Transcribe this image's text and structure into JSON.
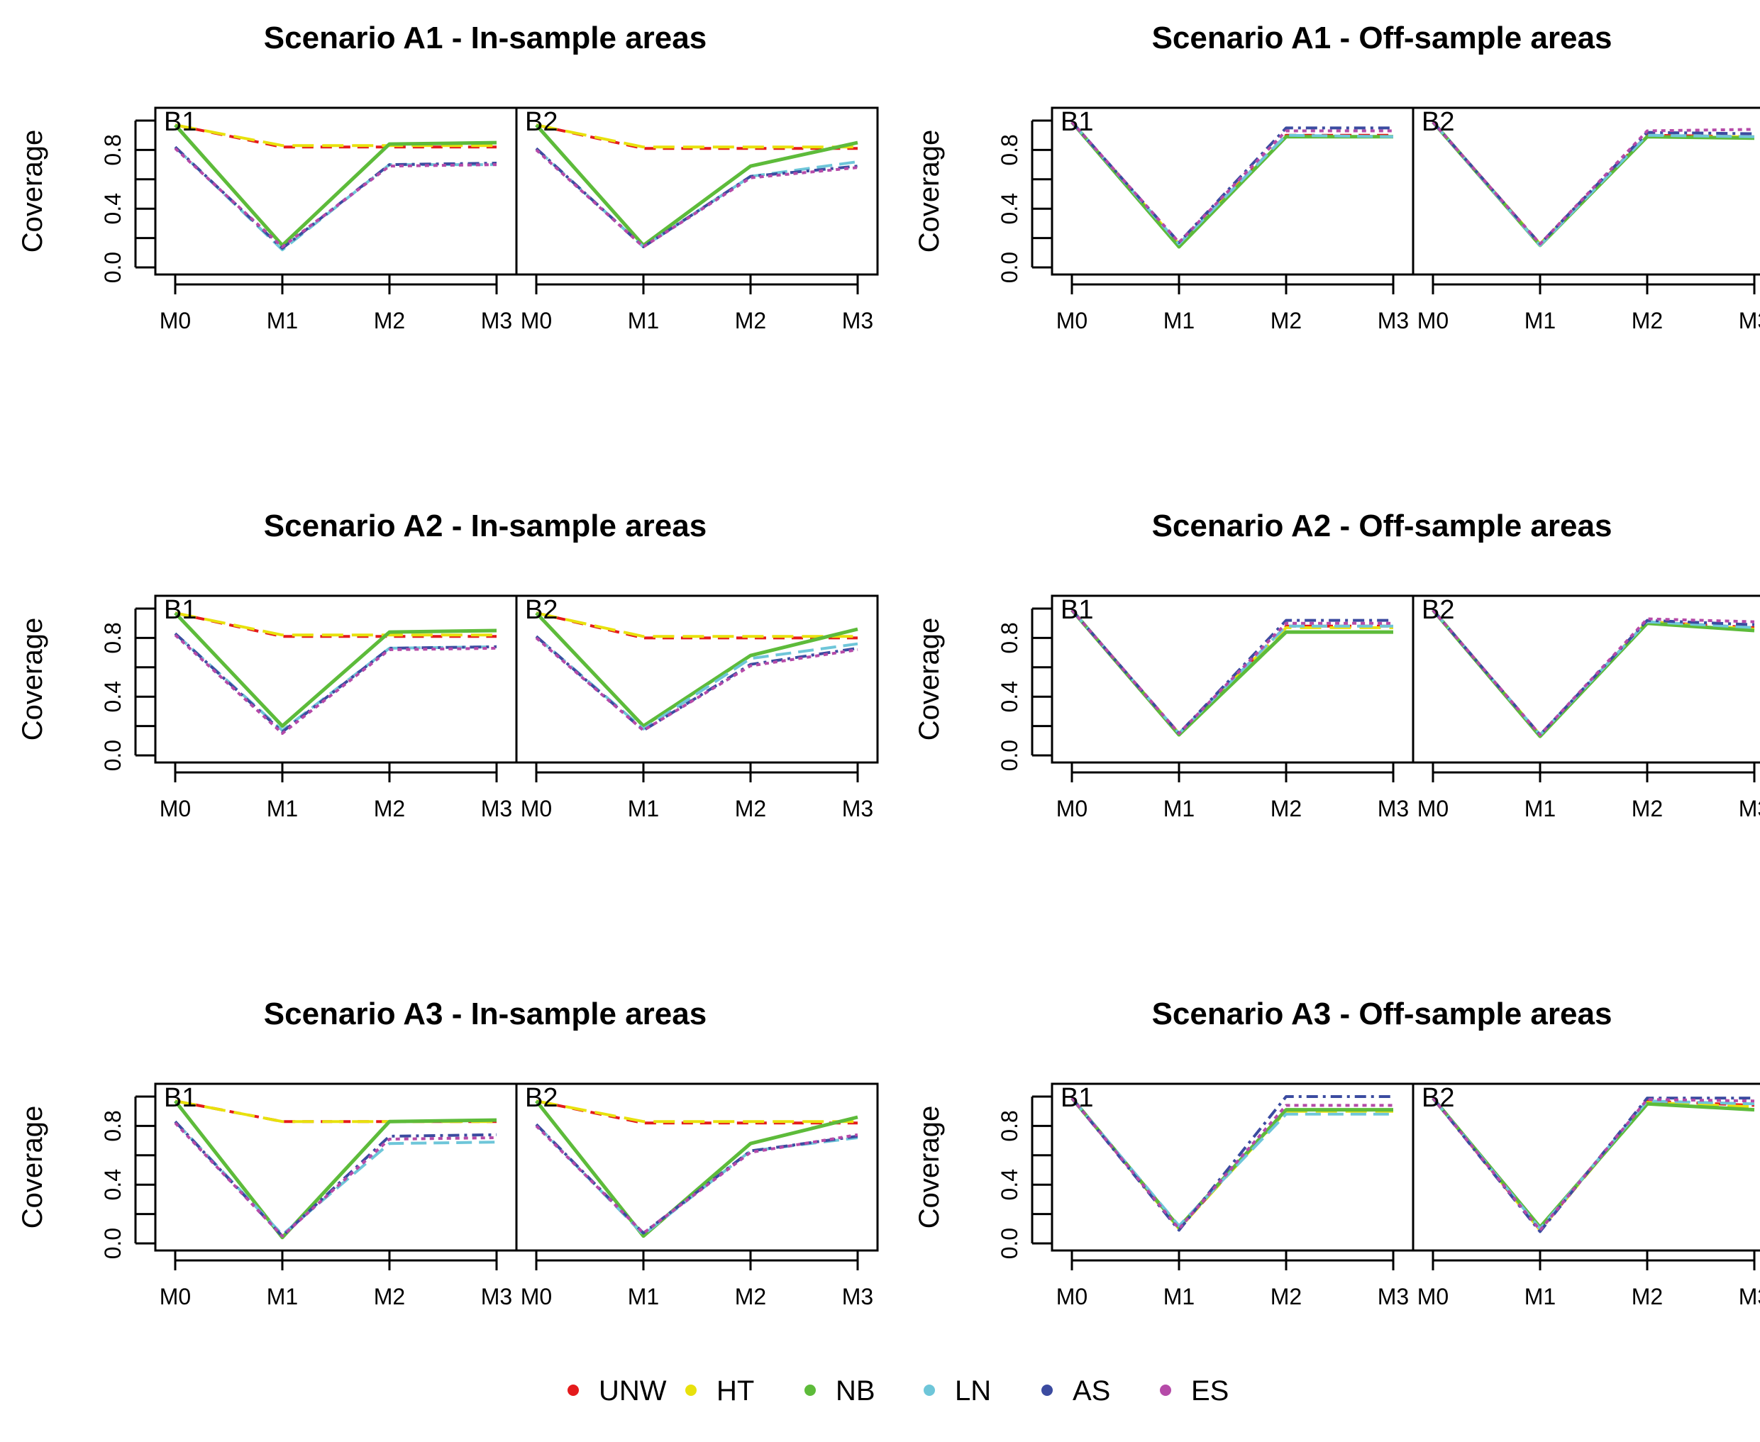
{
  "figure": {
    "legend": [
      {
        "key": "UNW",
        "label": "UNW",
        "color": "#E41A1C",
        "dash": "16 10"
      },
      {
        "key": "HT",
        "label": "HT",
        "color": "#E8E10C",
        "dash": "30 12"
      },
      {
        "key": "NB",
        "label": "NB",
        "color": "#5DBB3A",
        "dash": ""
      },
      {
        "key": "LN",
        "label": "LN",
        "color": "#6EC6D9",
        "dash": "22 10"
      },
      {
        "key": "AS",
        "label": "AS",
        "color": "#3B4BA0",
        "dash": "16 7 4 7"
      },
      {
        "key": "ES",
        "label": "ES",
        "color": "#B54AA8",
        "dash": "6 6"
      }
    ]
  },
  "chart_data": [
    {
      "type": "line",
      "title": "Scenario A1 - In-sample areas",
      "ylabel": "Coverage",
      "categories": [
        "M0",
        "M1",
        "M2",
        "M3"
      ],
      "yticks": [
        "0.0",
        "0.4",
        "0.8"
      ],
      "ylim": [
        0,
        1
      ],
      "facets": [
        {
          "label": "B1",
          "series": [
            {
              "name": "UNW",
              "values": [
                0.97,
                0.82,
                0.82,
                0.82
              ]
            },
            {
              "name": "HT",
              "values": [
                0.97,
                0.83,
                0.83,
                0.83
              ]
            },
            {
              "name": "NB",
              "values": [
                0.97,
                0.15,
                0.84,
                0.85
              ]
            },
            {
              "name": "LN",
              "values": [
                0.82,
                0.12,
                0.7,
                0.7
              ]
            },
            {
              "name": "AS",
              "values": [
                0.82,
                0.13,
                0.7,
                0.71
              ]
            },
            {
              "name": "ES",
              "values": [
                0.81,
                0.14,
                0.69,
                0.7
              ]
            }
          ]
        },
        {
          "label": "B2",
          "series": [
            {
              "name": "UNW",
              "values": [
                0.97,
                0.81,
                0.81,
                0.81
              ]
            },
            {
              "name": "HT",
              "values": [
                0.97,
                0.82,
                0.82,
                0.82
              ]
            },
            {
              "name": "NB",
              "values": [
                0.97,
                0.15,
                0.69,
                0.85
              ]
            },
            {
              "name": "LN",
              "values": [
                0.81,
                0.14,
                0.62,
                0.72
              ]
            },
            {
              "name": "AS",
              "values": [
                0.81,
                0.14,
                0.62,
                0.69
              ]
            },
            {
              "name": "ES",
              "values": [
                0.8,
                0.14,
                0.61,
                0.68
              ]
            }
          ]
        }
      ]
    },
    {
      "type": "line",
      "title": "Scenario A1 - Off-sample areas",
      "ylabel": "Coverage",
      "categories": [
        "M0",
        "M1",
        "M2",
        "M3"
      ],
      "yticks": [
        "0.0",
        "0.4",
        "0.8"
      ],
      "ylim": [
        0,
        1
      ],
      "facets": [
        {
          "label": "B1",
          "series": [
            {
              "name": "UNW",
              "values": [
                0.99,
                0.16,
                0.9,
                0.9
              ]
            },
            {
              "name": "HT",
              "values": [
                0.99,
                0.16,
                0.89,
                0.89
              ]
            },
            {
              "name": "NB",
              "values": [
                0.99,
                0.14,
                0.89,
                0.89
              ]
            },
            {
              "name": "LN",
              "values": [
                0.99,
                0.16,
                0.9,
                0.89
              ]
            },
            {
              "name": "AS",
              "values": [
                0.99,
                0.17,
                0.95,
                0.95
              ]
            },
            {
              "name": "ES",
              "values": [
                0.99,
                0.17,
                0.93,
                0.93
              ]
            }
          ]
        },
        {
          "label": "B2",
          "series": [
            {
              "name": "UNW",
              "values": [
                0.99,
                0.16,
                0.9,
                0.89
              ]
            },
            {
              "name": "HT",
              "values": [
                0.99,
                0.16,
                0.89,
                0.89
              ]
            },
            {
              "name": "NB",
              "values": [
                0.99,
                0.15,
                0.89,
                0.88
              ]
            },
            {
              "name": "LN",
              "values": [
                0.99,
                0.15,
                0.9,
                0.89
              ]
            },
            {
              "name": "AS",
              "values": [
                0.99,
                0.16,
                0.92,
                0.91
              ]
            },
            {
              "name": "ES",
              "values": [
                0.99,
                0.16,
                0.93,
                0.94
              ]
            }
          ]
        }
      ]
    },
    {
      "type": "line",
      "title": "Scenario A2 - In-sample areas",
      "ylabel": "Coverage",
      "categories": [
        "M0",
        "M1",
        "M2",
        "M3"
      ],
      "yticks": [
        "0.0",
        "0.4",
        "0.8"
      ],
      "ylim": [
        0,
        1
      ],
      "facets": [
        {
          "label": "B1",
          "series": [
            {
              "name": "UNW",
              "values": [
                0.97,
                0.81,
                0.81,
                0.81
              ]
            },
            {
              "name": "HT",
              "values": [
                0.97,
                0.82,
                0.82,
                0.82
              ]
            },
            {
              "name": "NB",
              "values": [
                0.97,
                0.2,
                0.84,
                0.85
              ]
            },
            {
              "name": "LN",
              "values": [
                0.83,
                0.17,
                0.73,
                0.74
              ]
            },
            {
              "name": "AS",
              "values": [
                0.83,
                0.16,
                0.73,
                0.74
              ]
            },
            {
              "name": "ES",
              "values": [
                0.82,
                0.15,
                0.72,
                0.73
              ]
            }
          ]
        },
        {
          "label": "B2",
          "series": [
            {
              "name": "UNW",
              "values": [
                0.97,
                0.8,
                0.8,
                0.8
              ]
            },
            {
              "name": "HT",
              "values": [
                0.97,
                0.81,
                0.81,
                0.81
              ]
            },
            {
              "name": "NB",
              "values": [
                0.97,
                0.2,
                0.68,
                0.86
              ]
            },
            {
              "name": "LN",
              "values": [
                0.81,
                0.18,
                0.66,
                0.76
              ]
            },
            {
              "name": "AS",
              "values": [
                0.81,
                0.17,
                0.62,
                0.73
              ]
            },
            {
              "name": "ES",
              "values": [
                0.8,
                0.17,
                0.61,
                0.72
              ]
            }
          ]
        }
      ]
    },
    {
      "type": "line",
      "title": "Scenario A2 - Off-sample areas",
      "ylabel": "Coverage",
      "categories": [
        "M0",
        "M1",
        "M2",
        "M3"
      ],
      "yticks": [
        "0.0",
        "0.4",
        "0.8"
      ],
      "ylim": [
        0,
        1
      ],
      "facets": [
        {
          "label": "B1",
          "series": [
            {
              "name": "UNW",
              "values": [
                0.99,
                0.15,
                0.88,
                0.88
              ]
            },
            {
              "name": "HT",
              "values": [
                0.99,
                0.15,
                0.87,
                0.87
              ]
            },
            {
              "name": "NB",
              "values": [
                0.99,
                0.14,
                0.84,
                0.84
              ]
            },
            {
              "name": "LN",
              "values": [
                0.99,
                0.15,
                0.88,
                0.88
              ]
            },
            {
              "name": "AS",
              "values": [
                0.99,
                0.15,
                0.92,
                0.92
              ]
            },
            {
              "name": "ES",
              "values": [
                0.99,
                0.15,
                0.9,
                0.9
              ]
            }
          ]
        },
        {
          "label": "B2",
          "series": [
            {
              "name": "UNW",
              "values": [
                0.99,
                0.14,
                0.91,
                0.87
              ]
            },
            {
              "name": "HT",
              "values": [
                0.99,
                0.14,
                0.91,
                0.86
              ]
            },
            {
              "name": "NB",
              "values": [
                0.99,
                0.13,
                0.9,
                0.85
              ]
            },
            {
              "name": "LN",
              "values": [
                0.99,
                0.14,
                0.91,
                0.87
              ]
            },
            {
              "name": "AS",
              "values": [
                0.99,
                0.14,
                0.92,
                0.89
              ]
            },
            {
              "name": "ES",
              "values": [
                0.99,
                0.14,
                0.93,
                0.91
              ]
            }
          ]
        }
      ]
    },
    {
      "type": "line",
      "title": "Scenario A3 - In-sample areas",
      "ylabel": "Coverage",
      "categories": [
        "M0",
        "M1",
        "M2",
        "M3"
      ],
      "yticks": [
        "0.0",
        "0.4",
        "0.8"
      ],
      "ylim": [
        0,
        1
      ],
      "facets": [
        {
          "label": "B1",
          "series": [
            {
              "name": "UNW",
              "values": [
                0.97,
                0.83,
                0.83,
                0.83
              ]
            },
            {
              "name": "HT",
              "values": [
                0.97,
                0.83,
                0.83,
                0.83
              ]
            },
            {
              "name": "NB",
              "values": [
                0.97,
                0.04,
                0.83,
                0.84
              ]
            },
            {
              "name": "LN",
              "values": [
                0.83,
                0.06,
                0.68,
                0.69
              ]
            },
            {
              "name": "AS",
              "values": [
                0.83,
                0.05,
                0.73,
                0.74
              ]
            },
            {
              "name": "ES",
              "values": [
                0.82,
                0.05,
                0.71,
                0.72
              ]
            }
          ]
        },
        {
          "label": "B2",
          "series": [
            {
              "name": "UNW",
              "values": [
                0.97,
                0.82,
                0.82,
                0.82
              ]
            },
            {
              "name": "HT",
              "values": [
                0.97,
                0.83,
                0.83,
                0.83
              ]
            },
            {
              "name": "NB",
              "values": [
                0.97,
                0.05,
                0.68,
                0.86
              ]
            },
            {
              "name": "LN",
              "values": [
                0.81,
                0.06,
                0.63,
                0.72
              ]
            },
            {
              "name": "AS",
              "values": [
                0.81,
                0.07,
                0.63,
                0.73
              ]
            },
            {
              "name": "ES",
              "values": [
                0.8,
                0.07,
                0.62,
                0.74
              ]
            }
          ]
        }
      ]
    },
    {
      "type": "line",
      "title": "Scenario A3 - Off-sample areas",
      "ylabel": "Coverage",
      "categories": [
        "M0",
        "M1",
        "M2",
        "M3"
      ],
      "yticks": [
        "0.0",
        "0.4",
        "0.8"
      ],
      "ylim": [
        0,
        1
      ],
      "facets": [
        {
          "label": "B1",
          "series": [
            {
              "name": "UNW",
              "values": [
                0.99,
                0.1,
                0.91,
                0.91
              ]
            },
            {
              "name": "HT",
              "values": [
                0.99,
                0.1,
                0.9,
                0.9
              ]
            },
            {
              "name": "NB",
              "values": [
                0.99,
                0.11,
                0.91,
                0.91
              ]
            },
            {
              "name": "LN",
              "values": [
                0.99,
                0.12,
                0.88,
                0.88
              ]
            },
            {
              "name": "AS",
              "values": [
                0.99,
                0.09,
                1.0,
                1.0
              ]
            },
            {
              "name": "ES",
              "values": [
                0.99,
                0.1,
                0.94,
                0.94
              ]
            }
          ]
        },
        {
          "label": "B2",
          "series": [
            {
              "name": "UNW",
              "values": [
                0.99,
                0.09,
                0.97,
                0.94
              ]
            },
            {
              "name": "HT",
              "values": [
                0.99,
                0.09,
                0.96,
                0.93
              ]
            },
            {
              "name": "NB",
              "values": [
                0.99,
                0.11,
                0.95,
                0.91
              ]
            },
            {
              "name": "LN",
              "values": [
                0.99,
                0.1,
                0.97,
                0.95
              ]
            },
            {
              "name": "AS",
              "values": [
                0.99,
                0.08,
                0.99,
                0.99
              ]
            },
            {
              "name": "ES",
              "values": [
                0.99,
                0.09,
                0.98,
                0.97
              ]
            }
          ]
        }
      ]
    }
  ]
}
